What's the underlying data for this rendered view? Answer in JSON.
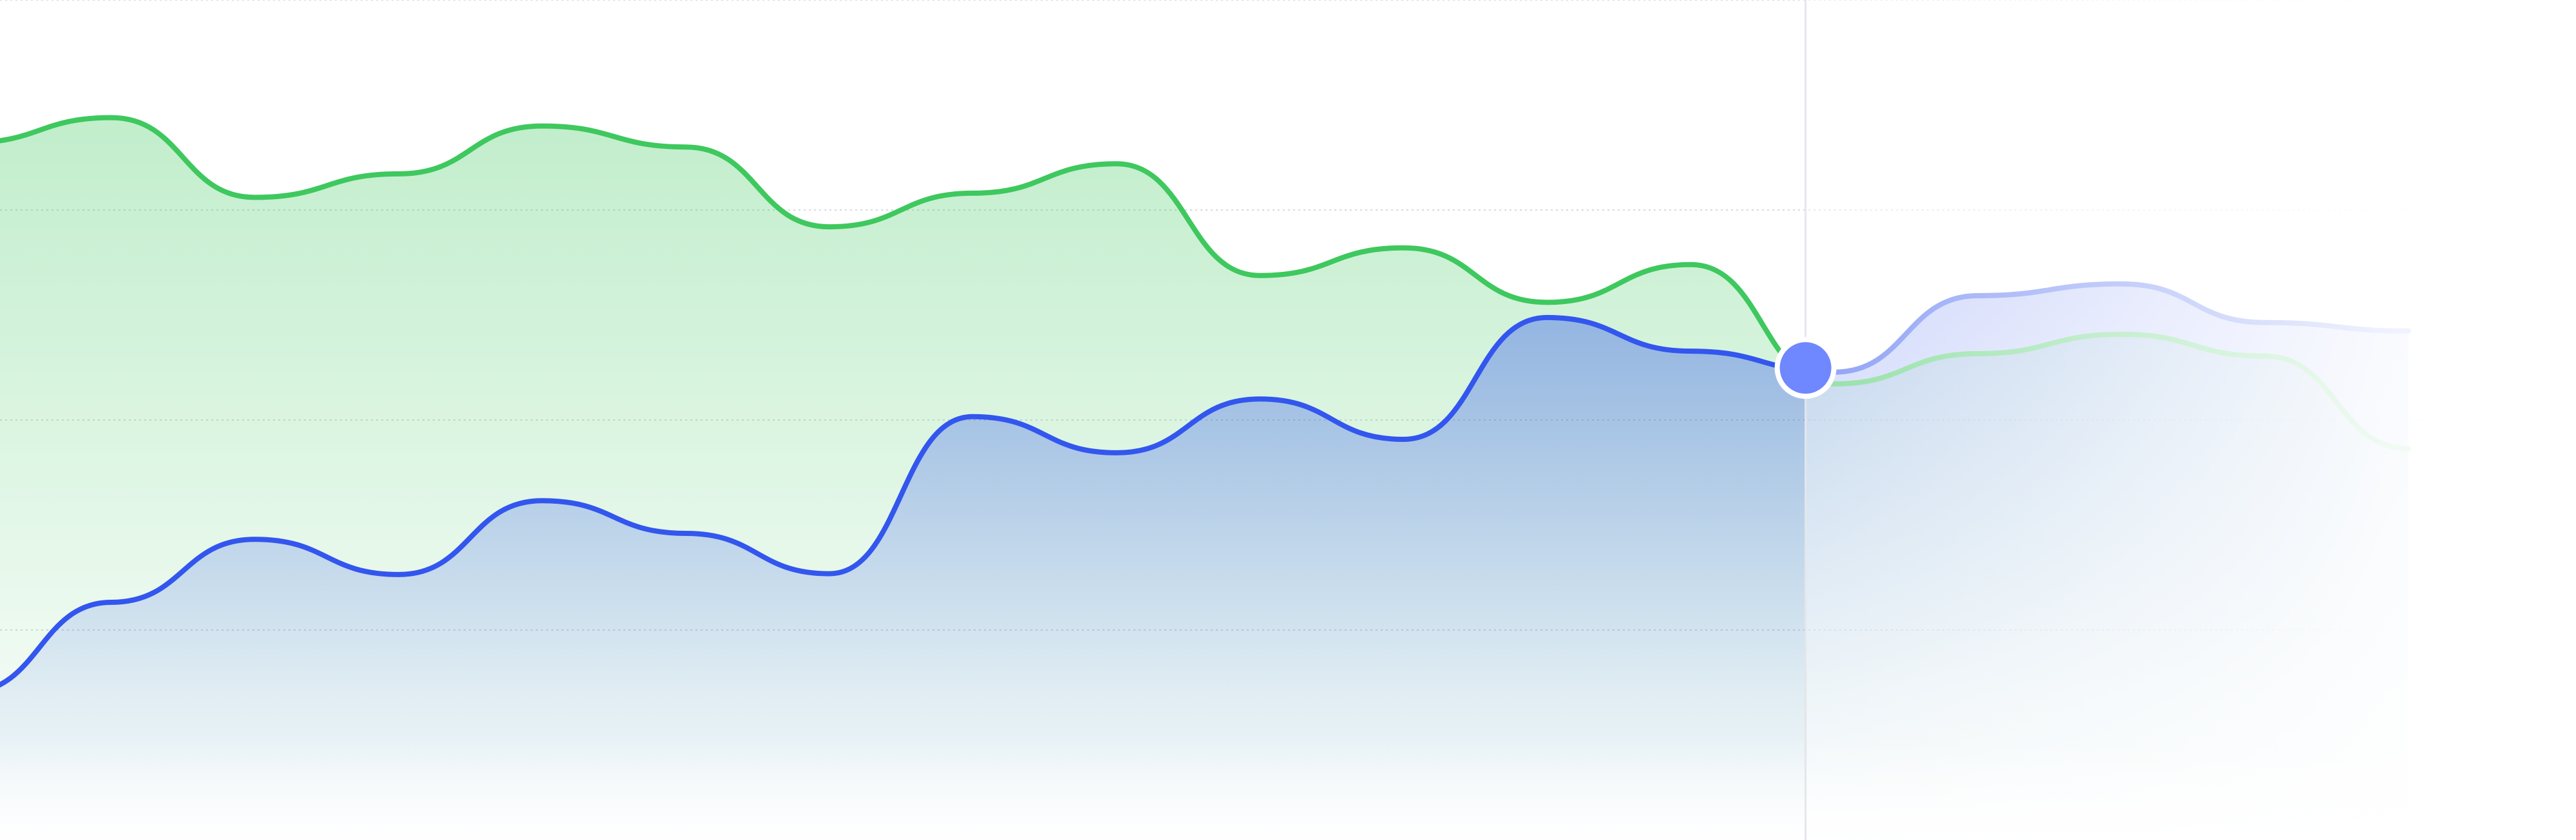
{
  "chart_data": {
    "type": "area",
    "title": "",
    "xlabel": "",
    "ylabel": "",
    "grid": true,
    "ylim": [
      0,
      100
    ],
    "x": [
      0,
      1,
      2,
      3,
      4,
      5,
      6,
      7,
      8,
      9,
      10,
      11,
      12,
      13,
      14,
      15,
      16,
      17
    ],
    "series": [
      {
        "color": "#3ec85e",
        "values": [
          83,
          86,
          76.5,
          79.3,
          85,
          82.5,
          73,
          77,
          80.5,
          67.2,
          70.5,
          64,
          68.5,
          54.3,
          57.9,
          60.2,
          57.6,
          46.6
        ]
      },
      {
        "color": "#3356ee",
        "values": [
          17.6,
          28.3,
          35.8,
          31.6,
          40.4,
          36.5,
          31.7,
          50.4,
          46.1,
          52.5,
          47.7,
          62.2,
          58.2,
          55.7,
          64.8,
          66.2,
          61.6,
          60.6
        ]
      }
    ],
    "hover": {
      "index": 12.8,
      "marker_color": "#6f87ff"
    },
    "faded_region": {
      "from": 12.8,
      "to": 17
    }
  }
}
